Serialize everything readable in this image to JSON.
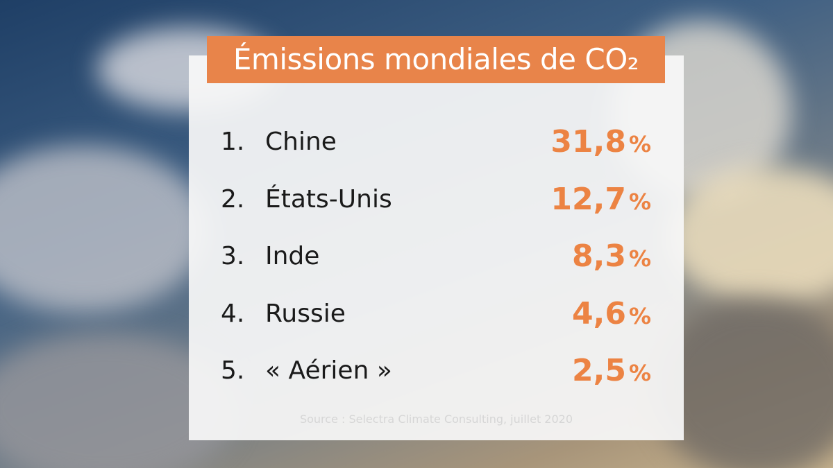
{
  "title": "Émissions mondiales de CO₂",
  "list": [
    {
      "rank": "1.",
      "name": "Chine",
      "value": "31,8",
      "unit": "%"
    },
    {
      "rank": "2.",
      "name": "États-Unis",
      "value": "12,7",
      "unit": "%"
    },
    {
      "rank": "3.",
      "name": "Inde",
      "value": "8,3",
      "unit": "%"
    },
    {
      "rank": "4.",
      "name": "Russie",
      "value": "4,6",
      "unit": "%"
    },
    {
      "rank": "5.",
      "name": "« Aérien »",
      "value": "2,5",
      "unit": "%"
    }
  ],
  "source": "Source : Selectra Climate Consulting, juillet 2020"
}
